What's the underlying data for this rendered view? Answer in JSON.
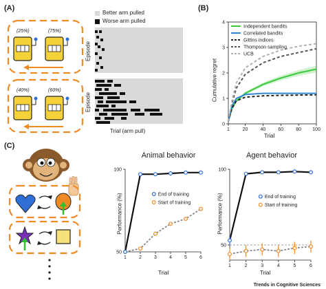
{
  "panels": {
    "A": {
      "label": "(A)",
      "top_probs": [
        "(25%)",
        "(75%)"
      ],
      "bottom_probs": [
        "(40%)",
        "(60%)"
      ],
      "legend": {
        "better": "Better arm pulled",
        "worse": "Worse arm pulled"
      },
      "ylabel": "Episode",
      "xlabel": "Trial (arm pull)"
    },
    "B": {
      "label": "(B)",
      "ylabel": "Cumulative regret",
      "xlabel": "Trial",
      "legend": [
        "Independent bandits",
        "Correlated bandits",
        "Gittins indices",
        "Thompson sampling",
        "UCB"
      ]
    },
    "C": {
      "label": "(C)",
      "left_title": "Animal behavior",
      "right_title": "Agent behavior",
      "ylabel": "Performance (%)",
      "xlabel": "Trial",
      "legend": [
        "End of training",
        "Start of training"
      ]
    }
  },
  "chart_data": [
    {
      "type": "line",
      "title": "",
      "xlabel": "Trial",
      "ylabel": "Cumulative regret",
      "xlim": [
        1,
        100
      ],
      "ylim": [
        0,
        4
      ],
      "xticks": [
        1,
        20,
        40,
        60,
        80,
        100
      ],
      "yticks": [
        0,
        1,
        2,
        3,
        4
      ],
      "legend_position": "top-left",
      "series": [
        {
          "name": "Independent bandits",
          "color": "#3cc83c",
          "style": "solid",
          "x": [
            1,
            5,
            10,
            20,
            40,
            60,
            80,
            100
          ],
          "values": [
            0.1,
            0.6,
            0.9,
            1.2,
            1.55,
            1.8,
            2.0,
            2.15
          ]
        },
        {
          "name": "Correlated bandits",
          "color": "#2f86d6",
          "style": "solid",
          "x": [
            1,
            5,
            10,
            20,
            40,
            60,
            80,
            100
          ],
          "values": [
            0.1,
            0.7,
            1.0,
            1.15,
            1.2,
            1.2,
            1.2,
            1.2
          ]
        },
        {
          "name": "Gittins indices",
          "color": "#222222",
          "style": "dashed",
          "x": [
            1,
            5,
            10,
            20,
            40,
            60,
            80,
            100
          ],
          "values": [
            0.1,
            0.6,
            0.9,
            1.05,
            1.1,
            1.12,
            1.13,
            1.14
          ]
        },
        {
          "name": "Thompson sampling",
          "color": "#555555",
          "style": "dashed",
          "x": [
            1,
            5,
            10,
            20,
            40,
            60,
            80,
            100
          ],
          "values": [
            0.1,
            0.8,
            1.4,
            1.95,
            2.4,
            2.65,
            2.8,
            2.95
          ]
        },
        {
          "name": "UCB",
          "color": "#b0b0b0",
          "style": "dashed",
          "x": [
            1,
            5,
            10,
            20,
            40,
            60,
            80,
            100
          ],
          "values": [
            0.1,
            0.9,
            1.6,
            2.2,
            2.65,
            2.9,
            3.05,
            3.15
          ]
        }
      ]
    },
    {
      "type": "line",
      "title": "Animal behavior",
      "xlabel": "Trial",
      "ylabel": "Performance (%)",
      "ylim": [
        50,
        100
      ],
      "xticks": [
        1,
        2,
        3,
        4,
        5,
        6
      ],
      "yticks": [
        50,
        100
      ],
      "legend_position": "right",
      "series": [
        {
          "name": "End of training",
          "color": "#2f6fd6",
          "x": [
            1,
            2,
            3,
            4,
            5,
            6
          ],
          "values": [
            50,
            97,
            97,
            97.5,
            98,
            98
          ]
        },
        {
          "name": "Start of training",
          "color": "#f08a24",
          "x": [
            1,
            2,
            3,
            4,
            5,
            6
          ],
          "values": [
            50,
            52,
            61,
            67,
            70,
            76
          ]
        }
      ]
    },
    {
      "type": "line",
      "title": "Agent behavior",
      "xlabel": "Trial",
      "ylabel": "Performance (%)",
      "ylim": [
        40,
        100
      ],
      "xticks": [
        1,
        2,
        3,
        4,
        5,
        6
      ],
      "yticks": [
        50,
        100
      ],
      "legend_position": "right",
      "series": [
        {
          "name": "End of training",
          "color": "#2f6fd6",
          "x": [
            1,
            2,
            3,
            4,
            5,
            6
          ],
          "values": [
            53,
            97,
            98,
            98,
            98.5,
            98
          ]
        },
        {
          "name": "Start of training",
          "color": "#f08a24",
          "x": [
            1,
            2,
            3,
            4,
            5,
            6
          ],
          "values": [
            44,
            46,
            47,
            46,
            48,
            49
          ]
        }
      ]
    }
  ]
}
